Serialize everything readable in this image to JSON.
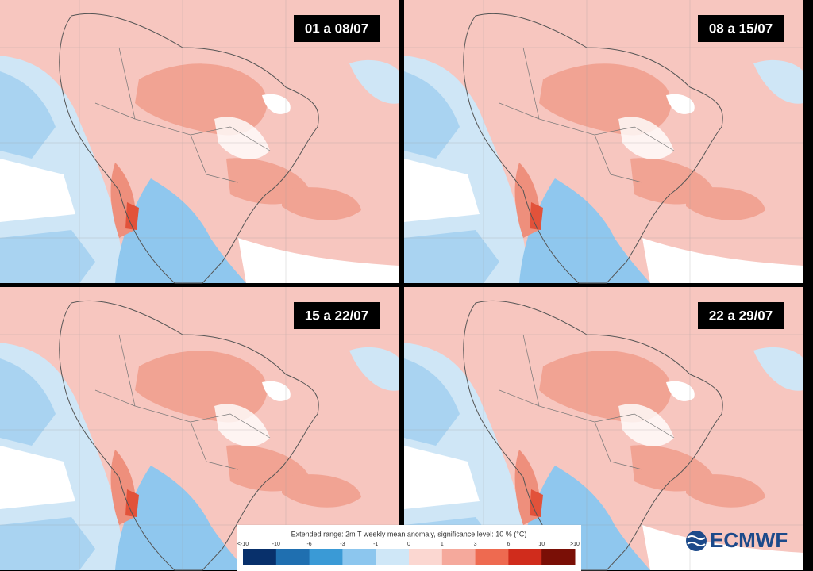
{
  "panels": [
    {
      "label": "01 a 08/07"
    },
    {
      "label": "08 a 15/07"
    },
    {
      "label": "15 a 22/07"
    },
    {
      "label": "22 a 29/07"
    }
  ],
  "colorbar": {
    "title": "Extended range: 2m T weekly mean anomaly, significance level: 10 % (°C)",
    "labels": [
      "<-10",
      "-10",
      "-6",
      "-3",
      "-1",
      "0",
      "1",
      "3",
      "6",
      "10",
      ">10"
    ],
    "colors": [
      "#08306b",
      "#1f6fb0",
      "#3a9ad6",
      "#8cc6ee",
      "#cfe7f7",
      "#fbd7d1",
      "#f5a99c",
      "#ee6a50",
      "#d02c1c",
      "#7a0f06"
    ]
  },
  "logo": {
    "text": "ECMWF"
  }
}
